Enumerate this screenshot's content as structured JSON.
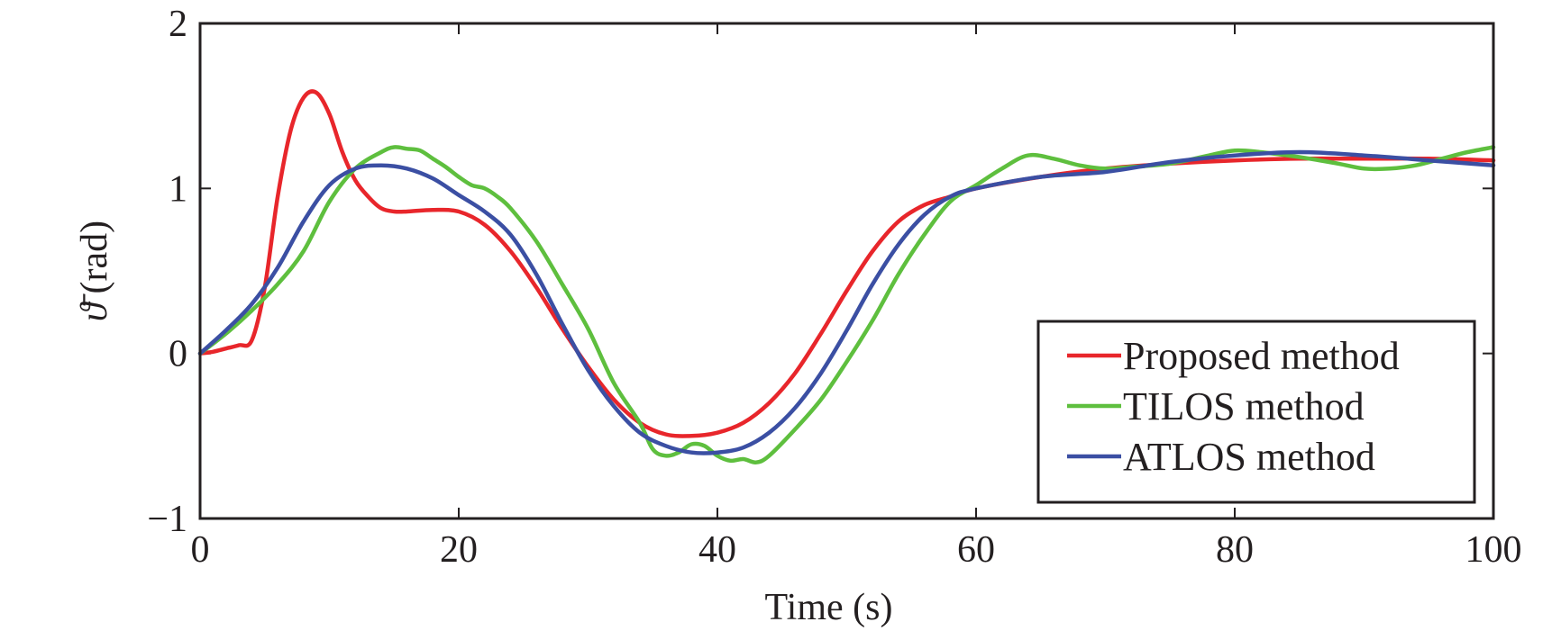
{
  "chart_data": {
    "type": "line",
    "title": "",
    "xlabel": "Time (s)",
    "ylabel": "(rad)",
    "ylabel_symbol": "ϑ̄",
    "xlim": [
      0,
      100
    ],
    "ylim": [
      -1,
      2
    ],
    "xticks": [
      0,
      20,
      40,
      60,
      80,
      100
    ],
    "xtick_labels": [
      "0",
      "20",
      "40",
      "60",
      "80",
      "100"
    ],
    "yticks": [
      -1,
      0,
      1,
      2
    ],
    "ytick_labels": [
      "−1",
      "0",
      "1",
      "2"
    ],
    "grid": false,
    "legend_position": "bottom-right",
    "series": [
      {
        "name": "Proposed method",
        "color": "#e8262b",
        "x": [
          0,
          1,
          2,
          3,
          4,
          5,
          6,
          7,
          8,
          9,
          10,
          11,
          12,
          13,
          14,
          15,
          16,
          18,
          20,
          22,
          24,
          26,
          28,
          30,
          32,
          34,
          36,
          38,
          40,
          42,
          44,
          46,
          48,
          50,
          52,
          54,
          56,
          58,
          60,
          65,
          70,
          75,
          80,
          85,
          90,
          95,
          100
        ],
        "y": [
          0,
          0.01,
          0.03,
          0.05,
          0.08,
          0.4,
          0.95,
          1.35,
          1.55,
          1.58,
          1.45,
          1.22,
          1.05,
          0.95,
          0.88,
          0.86,
          0.86,
          0.87,
          0.86,
          0.78,
          0.62,
          0.4,
          0.15,
          -0.08,
          -0.28,
          -0.42,
          -0.49,
          -0.5,
          -0.48,
          -0.42,
          -0.3,
          -0.12,
          0.12,
          0.38,
          0.62,
          0.8,
          0.9,
          0.95,
          1.0,
          1.07,
          1.12,
          1.15,
          1.17,
          1.18,
          1.18,
          1.18,
          1.17
        ]
      },
      {
        "name": "TILOS method",
        "color": "#5ebf3e",
        "x": [
          0,
          2,
          4,
          6,
          8,
          10,
          12,
          14,
          15,
          16,
          17,
          18,
          19,
          20,
          21,
          22,
          23,
          24,
          26,
          28,
          30,
          32,
          34,
          35,
          36,
          37,
          38,
          39,
          40,
          41,
          42,
          43,
          44,
          46,
          48,
          50,
          52,
          54,
          56,
          58,
          60,
          62,
          64,
          66,
          68,
          70,
          72,
          75,
          78,
          80,
          82,
          85,
          88,
          90,
          92,
          94,
          96,
          98,
          100
        ],
        "y": [
          0,
          0.12,
          0.26,
          0.42,
          0.62,
          0.92,
          1.12,
          1.22,
          1.25,
          1.24,
          1.23,
          1.18,
          1.13,
          1.07,
          1.02,
          1.0,
          0.95,
          0.88,
          0.68,
          0.42,
          0.15,
          -0.18,
          -0.42,
          -0.58,
          -0.62,
          -0.6,
          -0.55,
          -0.56,
          -0.62,
          -0.65,
          -0.64,
          -0.66,
          -0.62,
          -0.46,
          -0.28,
          -0.05,
          0.2,
          0.48,
          0.72,
          0.92,
          1.02,
          1.12,
          1.2,
          1.18,
          1.14,
          1.12,
          1.13,
          1.15,
          1.2,
          1.23,
          1.22,
          1.19,
          1.15,
          1.12,
          1.12,
          1.14,
          1.18,
          1.22,
          1.25
        ]
      },
      {
        "name": "ATLOS method",
        "color": "#3b4fa3",
        "x": [
          0,
          2,
          4,
          6,
          8,
          10,
          12,
          14,
          16,
          18,
          20,
          22,
          24,
          26,
          28,
          30,
          32,
          34,
          36,
          38,
          40,
          42,
          44,
          46,
          48,
          50,
          52,
          54,
          56,
          58,
          60,
          65,
          70,
          75,
          80,
          85,
          90,
          95,
          100
        ],
        "y": [
          0,
          0.14,
          0.3,
          0.52,
          0.8,
          1.02,
          1.12,
          1.14,
          1.12,
          1.06,
          0.96,
          0.86,
          0.72,
          0.48,
          0.18,
          -0.1,
          -0.32,
          -0.48,
          -0.56,
          -0.6,
          -0.6,
          -0.57,
          -0.48,
          -0.33,
          -0.12,
          0.14,
          0.42,
          0.66,
          0.84,
          0.95,
          1.0,
          1.07,
          1.1,
          1.16,
          1.2,
          1.22,
          1.2,
          1.17,
          1.14
        ]
      }
    ]
  }
}
